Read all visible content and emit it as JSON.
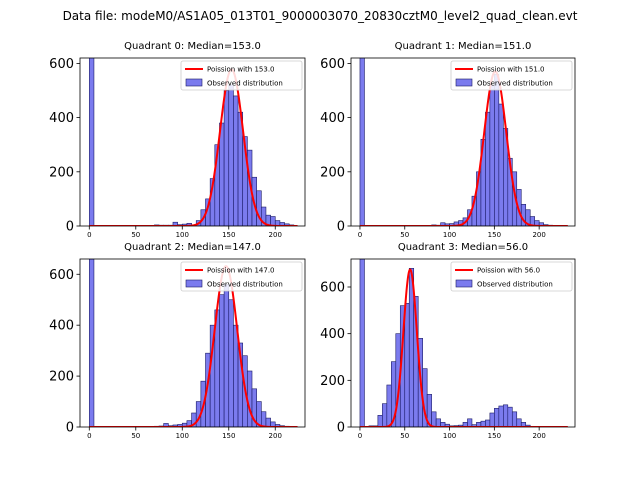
{
  "suptitle": "Data file: modeM0/AS1A05_013T01_9000003070_20830cztM0_level2_quad_clean.evt",
  "legend_labels": {
    "observed": "Observed distribution"
  },
  "colors": {
    "bar_fill": "#7b7bee",
    "bar_edge": "#1a1a66",
    "poisson_line": "#ff0000"
  },
  "chart_data": [
    {
      "type": "bar",
      "title": "Quadrant 0: Median=153.0",
      "poisson_label": "Poission with 153.0",
      "median": 153.0,
      "xlim": [
        -10,
        232
      ],
      "ylim": [
        0,
        620
      ],
      "xticks": [
        0,
        50,
        100,
        150,
        200
      ],
      "yticks": [
        0,
        200,
        400,
        600
      ],
      "bin_width": 5,
      "bins": [
        0,
        70,
        75,
        80,
        85,
        90,
        95,
        100,
        105,
        110,
        115,
        120,
        125,
        130,
        135,
        140,
        145,
        150,
        155,
        160,
        165,
        170,
        175,
        180,
        185,
        190,
        195,
        200,
        205,
        210,
        215
      ],
      "counts": [
        660,
        4,
        3,
        3,
        3,
        14,
        5,
        7,
        10,
        4,
        20,
        60,
        100,
        175,
        300,
        380,
        500,
        520,
        480,
        420,
        330,
        280,
        180,
        130,
        70,
        40,
        35,
        20,
        13,
        8,
        4
      ],
      "poisson_mean": 153.0,
      "poisson_peak": 578,
      "poisson_sigma": 12.4
    },
    {
      "type": "bar",
      "title": "Quadrant 1: Median=151.0",
      "poisson_label": "Poission with 151.0",
      "median": 151.0,
      "xlim": [
        -10,
        240
      ],
      "ylim": [
        0,
        620
      ],
      "xticks": [
        0,
        50,
        100,
        150,
        200
      ],
      "yticks": [
        0,
        200,
        400,
        600
      ],
      "bin_width": 5,
      "bins": [
        0,
        80,
        85,
        90,
        95,
        100,
        105,
        110,
        115,
        120,
        125,
        130,
        135,
        140,
        145,
        150,
        155,
        160,
        165,
        170,
        175,
        180,
        185,
        190,
        195,
        200,
        205,
        210,
        215,
        220
      ],
      "counts": [
        660,
        4,
        3,
        12,
        8,
        9,
        15,
        20,
        30,
        60,
        110,
        200,
        320,
        420,
        520,
        560,
        450,
        360,
        250,
        200,
        135,
        80,
        60,
        35,
        20,
        12,
        5,
        3,
        2,
        1
      ],
      "poisson_mean": 151.0,
      "poisson_peak": 570,
      "poisson_sigma": 12.3
    },
    {
      "type": "bar",
      "title": "Quadrant 2: Median=147.0",
      "poisson_label": "Poission with 147.0",
      "median": 147.0,
      "xlim": [
        -10,
        232
      ],
      "ylim": [
        0,
        660
      ],
      "xticks": [
        0,
        50,
        100,
        150,
        200
      ],
      "yticks": [
        0,
        200,
        400,
        600
      ],
      "bin_width": 5,
      "bins": [
        0,
        70,
        75,
        80,
        85,
        90,
        95,
        100,
        105,
        110,
        115,
        120,
        125,
        130,
        135,
        140,
        145,
        150,
        155,
        160,
        165,
        170,
        175,
        180,
        185,
        190,
        195,
        200,
        205,
        210,
        215
      ],
      "counts": [
        660,
        3,
        4,
        14,
        5,
        8,
        10,
        15,
        25,
        55,
        100,
        180,
        290,
        400,
        460,
        520,
        560,
        500,
        400,
        330,
        280,
        220,
        150,
        100,
        60,
        35,
        20,
        10,
        5,
        3,
        2
      ],
      "poisson_mean": 147.0,
      "poisson_peak": 632,
      "poisson_sigma": 12.1
    },
    {
      "type": "bar",
      "title": "Quadrant 3: Median=56.0",
      "poisson_label": "Poission with 56.0",
      "median": 56.0,
      "xlim": [
        -10,
        240
      ],
      "ylim": [
        0,
        720
      ],
      "xticks": [
        0,
        50,
        100,
        150,
        200
      ],
      "yticks": [
        0,
        200,
        400,
        600
      ],
      "bin_width": 5,
      "bins": [
        0,
        10,
        15,
        20,
        25,
        30,
        35,
        40,
        45,
        50,
        55,
        60,
        65,
        70,
        75,
        80,
        85,
        90,
        95,
        100,
        105,
        110,
        115,
        120,
        125,
        130,
        135,
        140,
        145,
        150,
        155,
        160,
        165,
        170,
        175,
        180,
        185,
        190
      ],
      "counts": [
        720,
        5,
        5,
        50,
        100,
        180,
        280,
        400,
        520,
        530,
        680,
        560,
        380,
        250,
        140,
        65,
        35,
        20,
        12,
        5,
        6,
        8,
        20,
        35,
        10,
        20,
        25,
        30,
        60,
        80,
        90,
        95,
        85,
        65,
        35,
        20,
        8,
        3
      ],
      "poisson_mean": 56.0,
      "poisson_peak": 675,
      "poisson_sigma": 7.5
    }
  ]
}
